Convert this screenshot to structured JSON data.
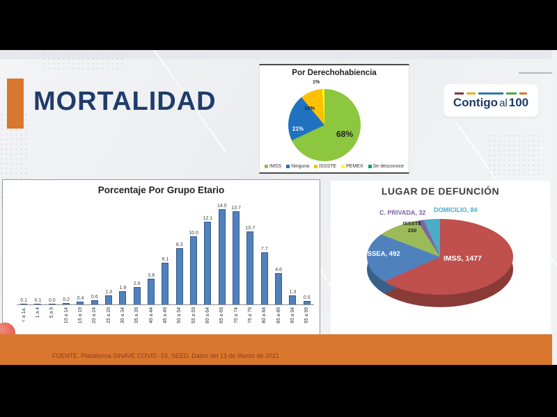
{
  "header": {
    "title": "MORTALIDAD",
    "logo": {
      "word1": "Contigo",
      "word2": "al",
      "word3": "100"
    }
  },
  "footer": {
    "source": "FUENTE. Plataforma SINAVE COVID -19, SEED. Datos del 13 de Marzo de 2021"
  },
  "colors": {
    "accent_orange": "#D9772E",
    "title_navy": "#1F3C6B",
    "bar_blue": "#4F81BD",
    "footer_text": "#943A1C"
  },
  "chart_data": [
    {
      "type": "pie",
      "title": "Por Derechohabiencia",
      "legend_position": "bottom",
      "slices": [
        {
          "name": "IMSS",
          "value": 68,
          "pct_label": "68%",
          "color": "#8DC63F"
        },
        {
          "name": "Ninguna",
          "value": 21,
          "pct_label": "21%",
          "color": "#1F72C0"
        },
        {
          "name": "ISSSTE",
          "value": 10,
          "pct_label": "10%",
          "color": "#FFC000"
        },
        {
          "name": "PEMEX",
          "value": 1,
          "pct_label": "1%",
          "color": "#FFFF00"
        },
        {
          "name": "Se desconoce",
          "value": 0,
          "pct_label": "",
          "color": "#00A651"
        }
      ]
    },
    {
      "type": "bar",
      "title": "Porcentaje Por Grupo Etario",
      "categories": [
        "< a 1a.",
        "1 a 4",
        "5 a 9",
        "10 a 14",
        "15 a 19",
        "20 a 24",
        "25 a 29",
        "30 a 34",
        "35 a 39",
        "40 a 44",
        "45 a 49",
        "50 a 54",
        "55 a 59",
        "60 a 64",
        "65 a 69",
        "70 a 74",
        "75 a 79",
        "80 a 84",
        "85 a 89",
        "90 a 94",
        "95 a 99"
      ],
      "values": [
        0.1,
        0.1,
        0.0,
        0.2,
        0.4,
        0.6,
        1.3,
        1.9,
        2.6,
        3.8,
        6.1,
        8.3,
        10.0,
        12.1,
        14.0,
        13.7,
        10.7,
        7.7,
        4.6,
        1.3,
        0.5
      ],
      "bar_color": "#4F81BD",
      "xlabel": "",
      "ylabel": "",
      "ylim": [
        0,
        14
      ]
    },
    {
      "type": "pie",
      "style": "3d",
      "title": "LUGAR DE DEFUNCIÓN",
      "slices": [
        {
          "name": "IMSS",
          "value": 1477,
          "label": "IMSS, 1477",
          "color": "#C0504D",
          "depth_color": "#8A3B38"
        },
        {
          "name": "ISSEA",
          "value": 492,
          "label": "ISSEA, 492",
          "color": "#4F81BD",
          "depth_color": "#3A6089"
        },
        {
          "name": "ISSSTE",
          "value": 230,
          "label_line1": "ISSSTE",
          "label_line2": "230",
          "color": "#9BBB59",
          "depth_color": "#738B42"
        },
        {
          "name": "C. PRIVADA",
          "value": 32,
          "label": "C. PRIVADA, 32",
          "color": "#8064A2",
          "depth_color": "#5E4979"
        },
        {
          "name": "DOMICILIO",
          "value": 84,
          "label": "DOMICILIO, 84",
          "color": "#4BACC6",
          "depth_color": "#37818F"
        }
      ]
    }
  ]
}
